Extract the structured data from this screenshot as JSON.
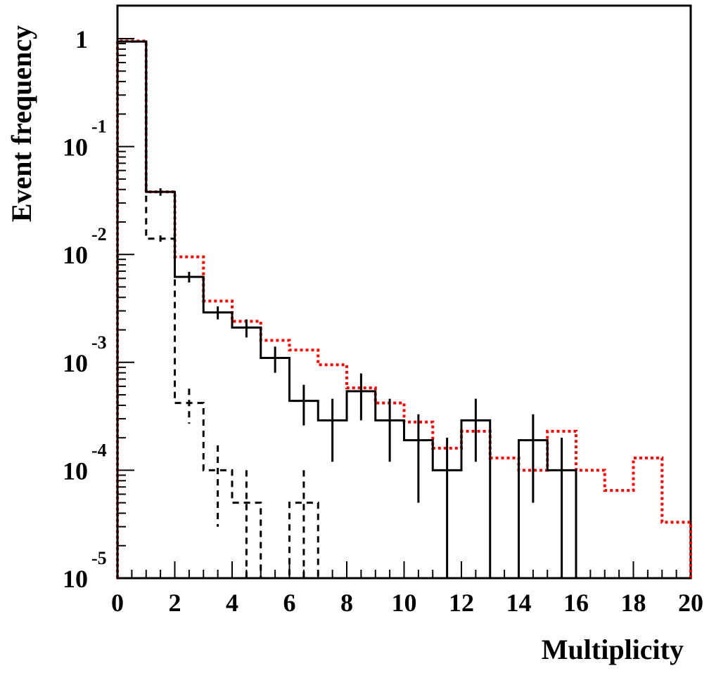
{
  "chart_data": {
    "type": "histogram",
    "xlabel": "Multiplicity",
    "ylabel": "Event frequency",
    "xlim": [
      0,
      20
    ],
    "ylim": [
      1e-05,
      1.8
    ],
    "yscale": "log",
    "grid": false,
    "x_ticks": [
      "0",
      "2",
      "4",
      "6",
      "8",
      "10",
      "12",
      "14",
      "16",
      "18",
      "20"
    ],
    "y_ticks": [
      {
        "base": "1",
        "exp": ""
      },
      {
        "base": "10",
        "exp": "-1"
      },
      {
        "base": "10",
        "exp": "-2"
      },
      {
        "base": "10",
        "exp": "-3"
      },
      {
        "base": "10",
        "exp": "-4"
      },
      {
        "base": "10",
        "exp": "-5"
      }
    ],
    "bin_edges": [
      0,
      1,
      2,
      3,
      4,
      5,
      6,
      7,
      8,
      9,
      10,
      11,
      12,
      13,
      14,
      15,
      16,
      17,
      18,
      19,
      20
    ],
    "series": [
      {
        "style": "solid",
        "color": "#000000",
        "values": [
          0.94,
          0.038,
          0.0062,
          0.0029,
          0.0021,
          0.0011,
          0.00044,
          0.00029,
          0.00054,
          0.00029,
          0.00019,
          0.0001,
          0.00029,
          0,
          0.00019,
          0.0001,
          0,
          0,
          0,
          0
        ],
        "errors": [
          0.02,
          0.003,
          0.0007,
          0.0004,
          0.0004,
          0.0003,
          0.00018,
          0.00017,
          0.00025,
          0.00017,
          0.00014,
          0.0001,
          0.00017,
          0,
          0.00014,
          0.0001,
          0,
          0,
          0,
          0
        ]
      },
      {
        "style": "dashed",
        "color": "#000000",
        "values": [
          0.94,
          0.014,
          0.00042,
          0.0001,
          5e-05,
          0,
          5e-05,
          0,
          0,
          0,
          0,
          0,
          0,
          0,
          0,
          0,
          0,
          0,
          0,
          0
        ],
        "errors": [
          0.02,
          0.001,
          0.00015,
          7e-05,
          5e-05,
          0,
          5e-05,
          0,
          0,
          0,
          0,
          0,
          0,
          0,
          0,
          0,
          0,
          0,
          0,
          0
        ]
      },
      {
        "style": "dotted",
        "color": "#ff0000",
        "values": [
          0.95,
          0.038,
          0.0095,
          0.0037,
          0.0024,
          0.0016,
          0.0013,
          0.00095,
          0.00058,
          0.00042,
          0.00028,
          0.00016,
          0.00023,
          0.00013,
          0.0001,
          0.00023,
          0.0001,
          6.5e-05,
          0.00013,
          3.3e-05
        ]
      }
    ]
  }
}
